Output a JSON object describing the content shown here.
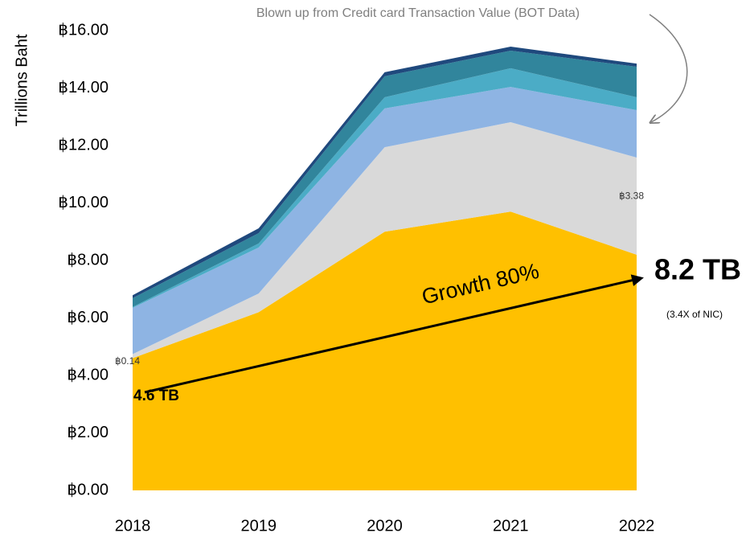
{
  "chart_data": {
    "type": "stacked_area",
    "y_label": "Trillions Baht",
    "categories": [
      "2018",
      "2019",
      "2020",
      "2021",
      "2022"
    ],
    "series": [
      {
        "color": "#FFC000",
        "values": [
          4.6,
          6.2,
          9.0,
          9.7,
          8.2
        ]
      },
      {
        "color": "#D9D9D9",
        "values": [
          0.14,
          0.65,
          2.94,
          3.11,
          3.38
        ],
        "value_labels": [
          "฿0.14",
          null,
          null,
          null,
          "฿3.38"
        ]
      },
      {
        "color": "#8EB4E3",
        "values": [
          1.61,
          1.6,
          1.35,
          1.23,
          1.65
        ]
      },
      {
        "color": "#4BACC6",
        "values": [
          0.03,
          0.14,
          0.39,
          0.65,
          0.45
        ]
      },
      {
        "color": "#31859C",
        "values": [
          0.31,
          0.36,
          0.73,
          0.61,
          1.06
        ]
      },
      {
        "color": "#1F497D",
        "values": [
          0.1,
          0.17,
          0.14,
          0.14,
          0.11
        ]
      }
    ],
    "ylim": [
      0,
      16
    ],
    "yticks": [
      {
        "value": 0,
        "label": "฿0.00"
      },
      {
        "value": 2,
        "label": "฿2.00"
      },
      {
        "value": 4,
        "label": "฿4.00"
      },
      {
        "value": 6,
        "label": "฿6.00"
      },
      {
        "value": 8,
        "label": "฿8.00"
      },
      {
        "value": 10,
        "label": "฿10.00"
      },
      {
        "value": 12,
        "label": "฿12.00"
      },
      {
        "value": 14,
        "label": "฿14.00"
      },
      {
        "value": 16,
        "label": "฿16.00"
      }
    ],
    "annotations": {
      "source": "Blown up from Credit card Transaction Value (BOT Data)",
      "growth": "Growth 80%",
      "start": "4.6 TB",
      "end": "8.2 TB",
      "end_note": "(3.4X of NIC)"
    }
  }
}
